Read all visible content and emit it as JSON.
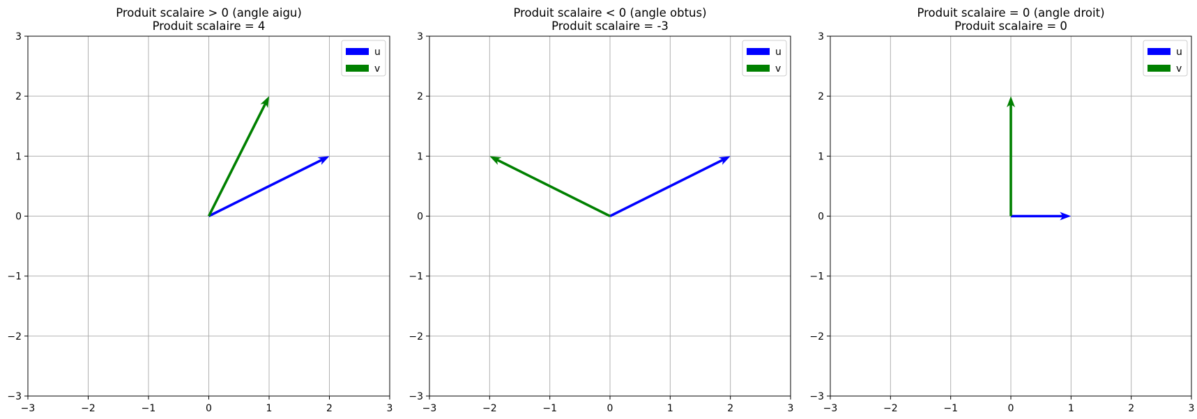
{
  "chart_data": [
    {
      "type": "quiver",
      "title": "Produit scalaire > 0 (angle aigu)",
      "subtitle": "Produit scalaire = 4",
      "xlim": [
        -3,
        3
      ],
      "ylim": [
        -3,
        3
      ],
      "xticks": [
        -3,
        -2,
        -1,
        0,
        1,
        2,
        3
      ],
      "yticks": [
        -3,
        -2,
        -1,
        0,
        1,
        2,
        3
      ],
      "grid": true,
      "legend_position": "top-right",
      "series": [
        {
          "name": "u",
          "color": "#0000ff",
          "origin": [
            0,
            0
          ],
          "vector": [
            2,
            1
          ]
        },
        {
          "name": "v",
          "color": "#008000",
          "origin": [
            0,
            0
          ],
          "vector": [
            1,
            2
          ]
        }
      ]
    },
    {
      "type": "quiver",
      "title": "Produit scalaire < 0 (angle obtus)",
      "subtitle": "Produit scalaire = -3",
      "xlim": [
        -3,
        3
      ],
      "ylim": [
        -3,
        3
      ],
      "xticks": [
        -3,
        -2,
        -1,
        0,
        1,
        2,
        3
      ],
      "yticks": [
        -3,
        -2,
        -1,
        0,
        1,
        2,
        3
      ],
      "grid": true,
      "legend_position": "top-right",
      "series": [
        {
          "name": "u",
          "color": "#0000ff",
          "origin": [
            0,
            0
          ],
          "vector": [
            2,
            1
          ]
        },
        {
          "name": "v",
          "color": "#008000",
          "origin": [
            0,
            0
          ],
          "vector": [
            -2,
            1
          ]
        }
      ]
    },
    {
      "type": "quiver",
      "title": "Produit scalaire = 0 (angle droit)",
      "subtitle": "Produit scalaire = 0",
      "xlim": [
        -3,
        3
      ],
      "ylim": [
        -3,
        3
      ],
      "xticks": [
        -3,
        -2,
        -1,
        0,
        1,
        2,
        3
      ],
      "yticks": [
        -3,
        -2,
        -1,
        0,
        1,
        2,
        3
      ],
      "grid": true,
      "legend_position": "top-right",
      "series": [
        {
          "name": "u",
          "color": "#0000ff",
          "origin": [
            0,
            0
          ],
          "vector": [
            1,
            0
          ]
        },
        {
          "name": "v",
          "color": "#008000",
          "origin": [
            0,
            0
          ],
          "vector": [
            0,
            2
          ]
        }
      ]
    }
  ]
}
